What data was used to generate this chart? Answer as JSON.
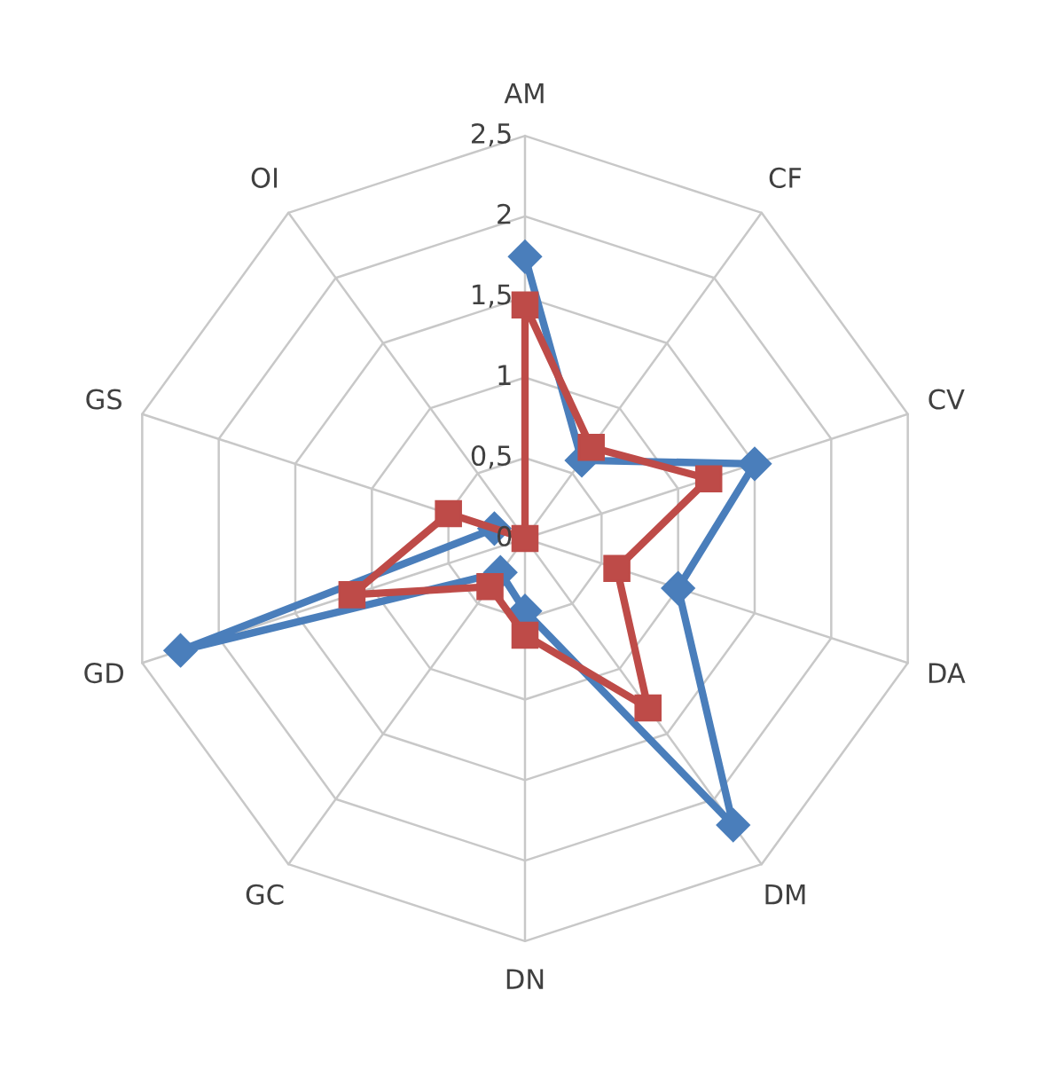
{
  "chart_data": {
    "type": "radar",
    "categories": [
      "AM",
      "CF",
      "CV",
      "DA",
      "DM",
      "DN",
      "GC",
      "GD",
      "GS",
      "OI"
    ],
    "series": [
      {
        "color": "#4a7ebb",
        "marker": "diamond",
        "values": [
          1.75,
          0.6,
          1.5,
          1.0,
          2.2,
          0.45,
          0.26,
          2.25,
          0.2,
          null
        ]
      },
      {
        "color": "#be4b48",
        "marker": "square",
        "values": [
          1.45,
          0.7,
          1.2,
          0.6,
          1.3,
          0.6,
          0.37,
          1.13,
          0.5,
          0
        ]
      }
    ],
    "ylim": [
      0,
      2.5
    ],
    "yticks": [
      0,
      {
        "value": 0.5,
        "label": "0,5"
      },
      1,
      {
        "value": 1.5,
        "label": "1,5"
      },
      2,
      {
        "value": 2.5,
        "label": "2,5"
      }
    ],
    "grid": true
  }
}
